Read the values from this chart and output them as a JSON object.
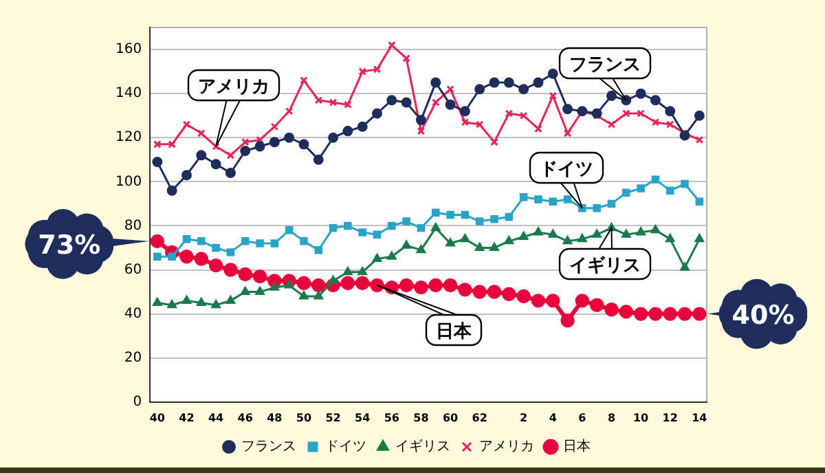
{
  "chart_data": {
    "type": "line",
    "categories": [
      "40",
      null,
      "42",
      null,
      "44",
      null,
      "46",
      null,
      "48",
      null,
      "50",
      null,
      "52",
      null,
      "54",
      null,
      "56",
      null,
      "58",
      null,
      "60",
      null,
      "62",
      null,
      null,
      "2",
      null,
      "4",
      null,
      "6",
      null,
      "8",
      null,
      "10",
      null,
      "12",
      null,
      "14"
    ],
    "series": [
      {
        "name": "フランス",
        "color": "#1f2d5c",
        "marker": "circle",
        "values": [
          109,
          96,
          103,
          112,
          108,
          104,
          114,
          116,
          118,
          120,
          117,
          110,
          120,
          123,
          125,
          131,
          137,
          136,
          128,
          145,
          135,
          132,
          142,
          145,
          145,
          142,
          145,
          149,
          133,
          132,
          131,
          139,
          137,
          140,
          137,
          132,
          121,
          130
        ]
      },
      {
        "name": "ドイツ",
        "color": "#2aa3c8",
        "marker": "square",
        "values": [
          66,
          66,
          74,
          73,
          70,
          68,
          73,
          72,
          72,
          78,
          73,
          69,
          79,
          80,
          77,
          76,
          80,
          82,
          79,
          86,
          85,
          85,
          82,
          83,
          84,
          93,
          92,
          91,
          92,
          88,
          88,
          90,
          95,
          97,
          101,
          96,
          99,
          91
        ]
      },
      {
        "name": "イギリス",
        "color": "#1a7a4a",
        "marker": "triangle",
        "values": [
          45,
          44,
          46,
          45,
          44,
          46,
          50,
          50,
          52,
          53,
          48,
          48,
          55,
          59,
          59,
          65,
          66,
          71,
          69,
          79,
          72,
          74,
          70,
          70,
          73,
          75,
          77,
          76,
          73,
          74,
          76,
          79,
          76,
          77,
          78,
          74,
          61,
          74
        ]
      },
      {
        "name": "アメリカ",
        "color": "#e8245a",
        "marker": "cross",
        "values": [
          117,
          117,
          126,
          122,
          116,
          112,
          118,
          119,
          125,
          132,
          146,
          137,
          136,
          135,
          150,
          151,
          162,
          156,
          123,
          136,
          142,
          127,
          126,
          118,
          131,
          130,
          124,
          139,
          122,
          132,
          130,
          126,
          131,
          131,
          127,
          126,
          122,
          119
        ]
      },
      {
        "name": "日本",
        "color": "#e8003c",
        "marker": "circle",
        "values": [
          73,
          68,
          66,
          65,
          62,
          60,
          58,
          57,
          55,
          55,
          54,
          53,
          53,
          54,
          54,
          53,
          52,
          53,
          52,
          53,
          53,
          51,
          50,
          50,
          49,
          48,
          46,
          46,
          37,
          46,
          44,
          42,
          41,
          40,
          40,
          40,
          40,
          40
        ]
      }
    ],
    "ylim": [
      0,
      170
    ],
    "yticks": [
      0,
      20,
      40,
      60,
      80,
      100,
      120,
      140,
      160
    ],
    "grid": "y",
    "legend": "bottom",
    "annotations": [
      {
        "text": "73%",
        "x": "40",
        "y": 73
      },
      {
        "text": "40%",
        "x": "14",
        "y": 40
      }
    ]
  }
}
